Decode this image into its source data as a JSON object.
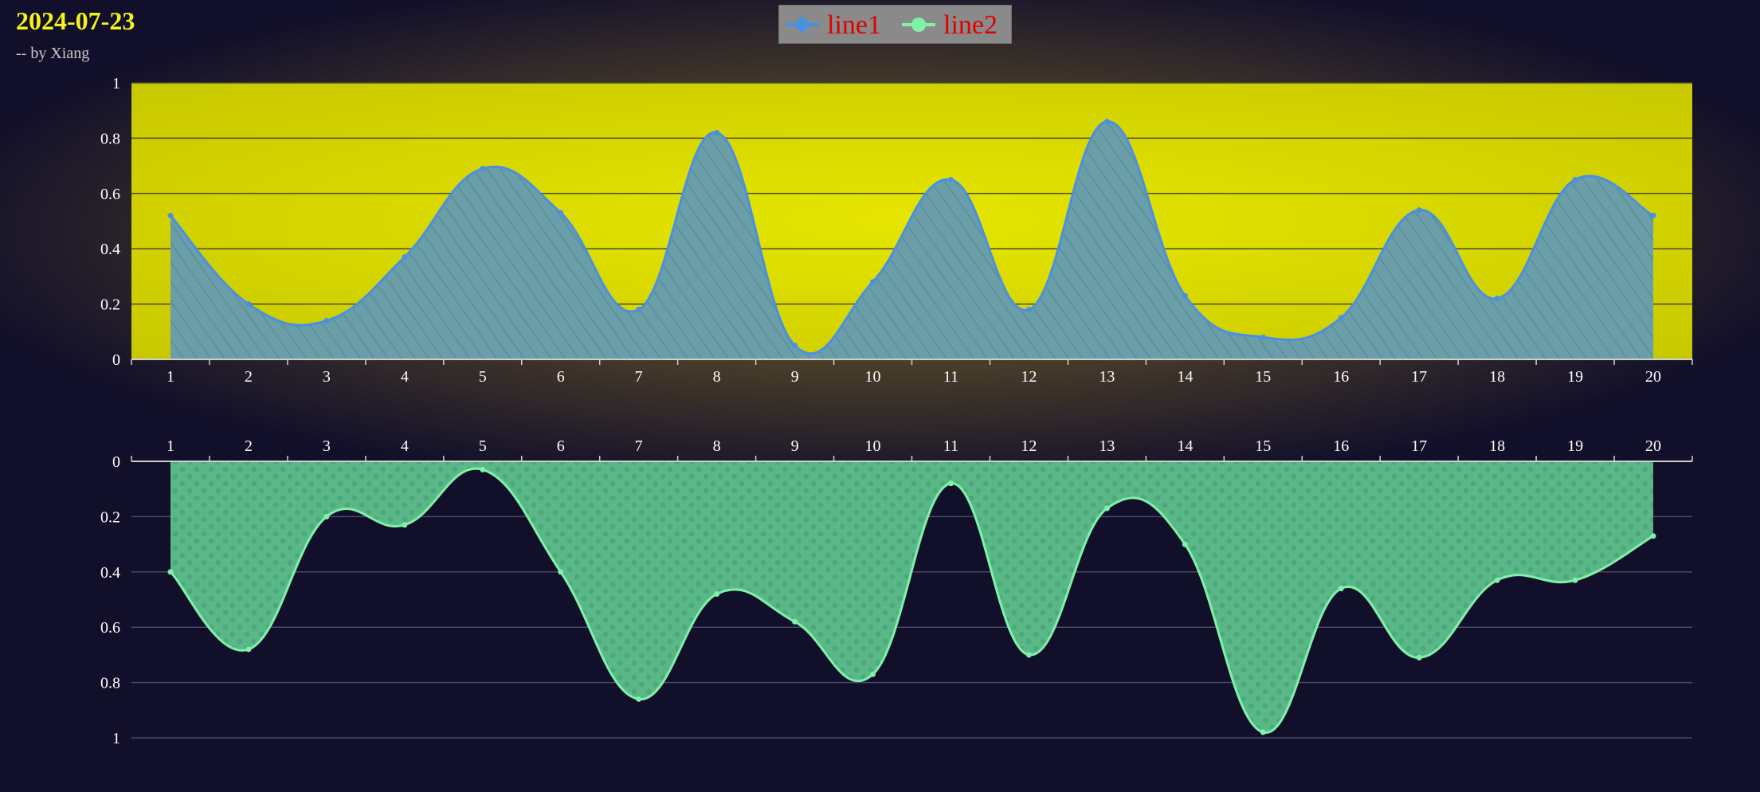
{
  "title": "2024-07-23",
  "subtitle": "-- by Xiang",
  "colors": {
    "line1": "#4a90e2",
    "line1_fill": "#6a9ea8",
    "line2": "#7ff2a8",
    "line2_fill": "#5ab888",
    "plot1_bg": "#dede00",
    "legend_bg": "#8a8a8a",
    "legend_text": "#e00000",
    "title": "#f3f31a"
  },
  "legend": [
    {
      "label": "line1",
      "icon": "diamond-line-icon"
    },
    {
      "label": "line2",
      "icon": "circle-line-icon"
    }
  ],
  "chart_data": [
    {
      "type": "area",
      "x": [
        1,
        2,
        3,
        4,
        5,
        6,
        7,
        8,
        9,
        10,
        11,
        12,
        13,
        14,
        15,
        16,
        17,
        18,
        19,
        20
      ],
      "series": [
        {
          "name": "line1",
          "values": [
            0.52,
            0.2,
            0.14,
            0.37,
            0.69,
            0.53,
            0.18,
            0.82,
            0.05,
            0.28,
            0.65,
            0.18,
            0.86,
            0.23,
            0.08,
            0.15,
            0.54,
            0.22,
            0.65,
            0.52
          ]
        }
      ],
      "ylim": [
        0,
        1
      ],
      "yticks": [
        "0",
        "0.2",
        "0.4",
        "0.6",
        "0.8",
        "1"
      ],
      "xticks": [
        "1",
        "2",
        "3",
        "4",
        "5",
        "6",
        "7",
        "8",
        "9",
        "10",
        "11",
        "12",
        "13",
        "14",
        "15",
        "16",
        "17",
        "18",
        "19",
        "20"
      ],
      "y_inverted": false,
      "grid": true
    },
    {
      "type": "area",
      "x": [
        1,
        2,
        3,
        4,
        5,
        6,
        7,
        8,
        9,
        10,
        11,
        12,
        13,
        14,
        15,
        16,
        17,
        18,
        19,
        20
      ],
      "series": [
        {
          "name": "line2",
          "values": [
            0.4,
            0.68,
            0.2,
            0.23,
            0.03,
            0.4,
            0.86,
            0.48,
            0.58,
            0.77,
            0.08,
            0.7,
            0.17,
            0.3,
            0.98,
            0.46,
            0.71,
            0.43,
            0.43,
            0.27
          ]
        }
      ],
      "ylim": [
        0,
        1
      ],
      "yticks": [
        "0",
        "0.2",
        "0.4",
        "0.6",
        "0.8",
        "1"
      ],
      "xticks": [
        "1",
        "2",
        "3",
        "4",
        "5",
        "6",
        "7",
        "8",
        "9",
        "10",
        "11",
        "12",
        "13",
        "14",
        "15",
        "16",
        "17",
        "18",
        "19",
        "20"
      ],
      "y_inverted": true,
      "x_axis_position": "top",
      "grid": true
    }
  ]
}
